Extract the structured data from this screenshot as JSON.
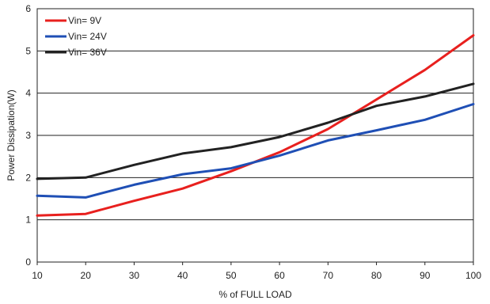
{
  "chart_data": {
    "type": "line",
    "xlabel": "% of FULL LOAD",
    "ylabel": "Power Dissipation(W)",
    "xlim": [
      10,
      100
    ],
    "ylim": [
      0,
      6
    ],
    "x_ticks": [
      "10",
      "20",
      "30",
      "40",
      "50",
      "60",
      "70",
      "80",
      "90",
      "100"
    ],
    "y_ticks": [
      "0",
      "1",
      "2",
      "3",
      "4",
      "5",
      "6"
    ],
    "grid": "horizontal",
    "legend_position": "top-left",
    "x": [
      10,
      20,
      30,
      40,
      50,
      60,
      70,
      80,
      90,
      100
    ],
    "series": [
      {
        "name": "Vin= 9V",
        "color": "#e8201e",
        "values": [
          1.1,
          1.14,
          1.45,
          1.74,
          2.15,
          2.6,
          3.15,
          3.85,
          4.55,
          5.37
        ]
      },
      {
        "name": "Vin= 24V",
        "color": "#1f4fb5",
        "values": [
          1.57,
          1.53,
          1.83,
          2.08,
          2.22,
          2.52,
          2.88,
          3.12,
          3.37,
          3.74
        ]
      },
      {
        "name": "Vin= 36V",
        "color": "#222222",
        "values": [
          1.97,
          2.0,
          2.3,
          2.57,
          2.72,
          2.96,
          3.3,
          3.7,
          3.92,
          4.22
        ]
      }
    ]
  }
}
